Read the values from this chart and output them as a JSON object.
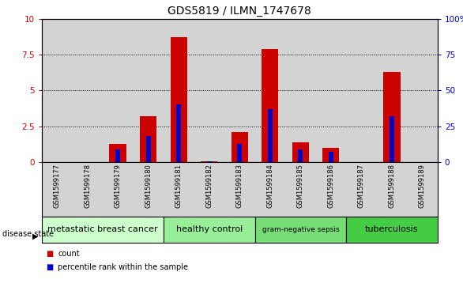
{
  "title": "GDS5819 / ILMN_1747678",
  "samples": [
    "GSM1599177",
    "GSM1599178",
    "GSM1599179",
    "GSM1599180",
    "GSM1599181",
    "GSM1599182",
    "GSM1599183",
    "GSM1599184",
    "GSM1599185",
    "GSM1599186",
    "GSM1599187",
    "GSM1599188",
    "GSM1599189"
  ],
  "count_values": [
    0.0,
    0.0,
    1.3,
    3.2,
    8.7,
    0.05,
    2.1,
    7.9,
    1.4,
    1.0,
    0.0,
    6.3,
    0.0
  ],
  "percentile_values": [
    0.0,
    0.0,
    0.9,
    1.8,
    4.0,
    0.05,
    1.3,
    3.7,
    0.9,
    0.7,
    0.0,
    3.2,
    0.0
  ],
  "count_color": "#cc0000",
  "percentile_color": "#0000cc",
  "ylim_left": [
    0,
    10
  ],
  "ylim_right": [
    0,
    100
  ],
  "yticks_left": [
    0,
    2.5,
    5.0,
    7.5,
    10
  ],
  "ytick_labels_left": [
    "0",
    "2.5",
    "5",
    "7.5",
    "10"
  ],
  "yticks_right": [
    0,
    25,
    50,
    75,
    100
  ],
  "ytick_labels_right": [
    "0",
    "25",
    "50",
    "75",
    "100%"
  ],
  "disease_groups": [
    {
      "label": "metastatic breast cancer",
      "start": 0,
      "end": 4,
      "color": "#ccffcc"
    },
    {
      "label": "healthy control",
      "start": 4,
      "end": 7,
      "color": "#99ee99"
    },
    {
      "label": "gram-negative sepsis",
      "start": 7,
      "end": 10,
      "color": "#77dd77"
    },
    {
      "label": "tuberculosis",
      "start": 10,
      "end": 13,
      "color": "#44cc44"
    }
  ],
  "disease_state_label": "disease state",
  "legend_count_label": "count",
  "legend_percentile_label": "percentile rank within the sample",
  "red_bar_width": 0.55,
  "blue_bar_width": 0.15,
  "tick_area_bg": "#d3d3d3",
  "grid_color": "#000000",
  "title_fontsize": 10,
  "axis_fontsize": 7.5,
  "sample_fontsize": 6,
  "disease_fontsize": 8,
  "disease_fontsize_small": 6.5
}
